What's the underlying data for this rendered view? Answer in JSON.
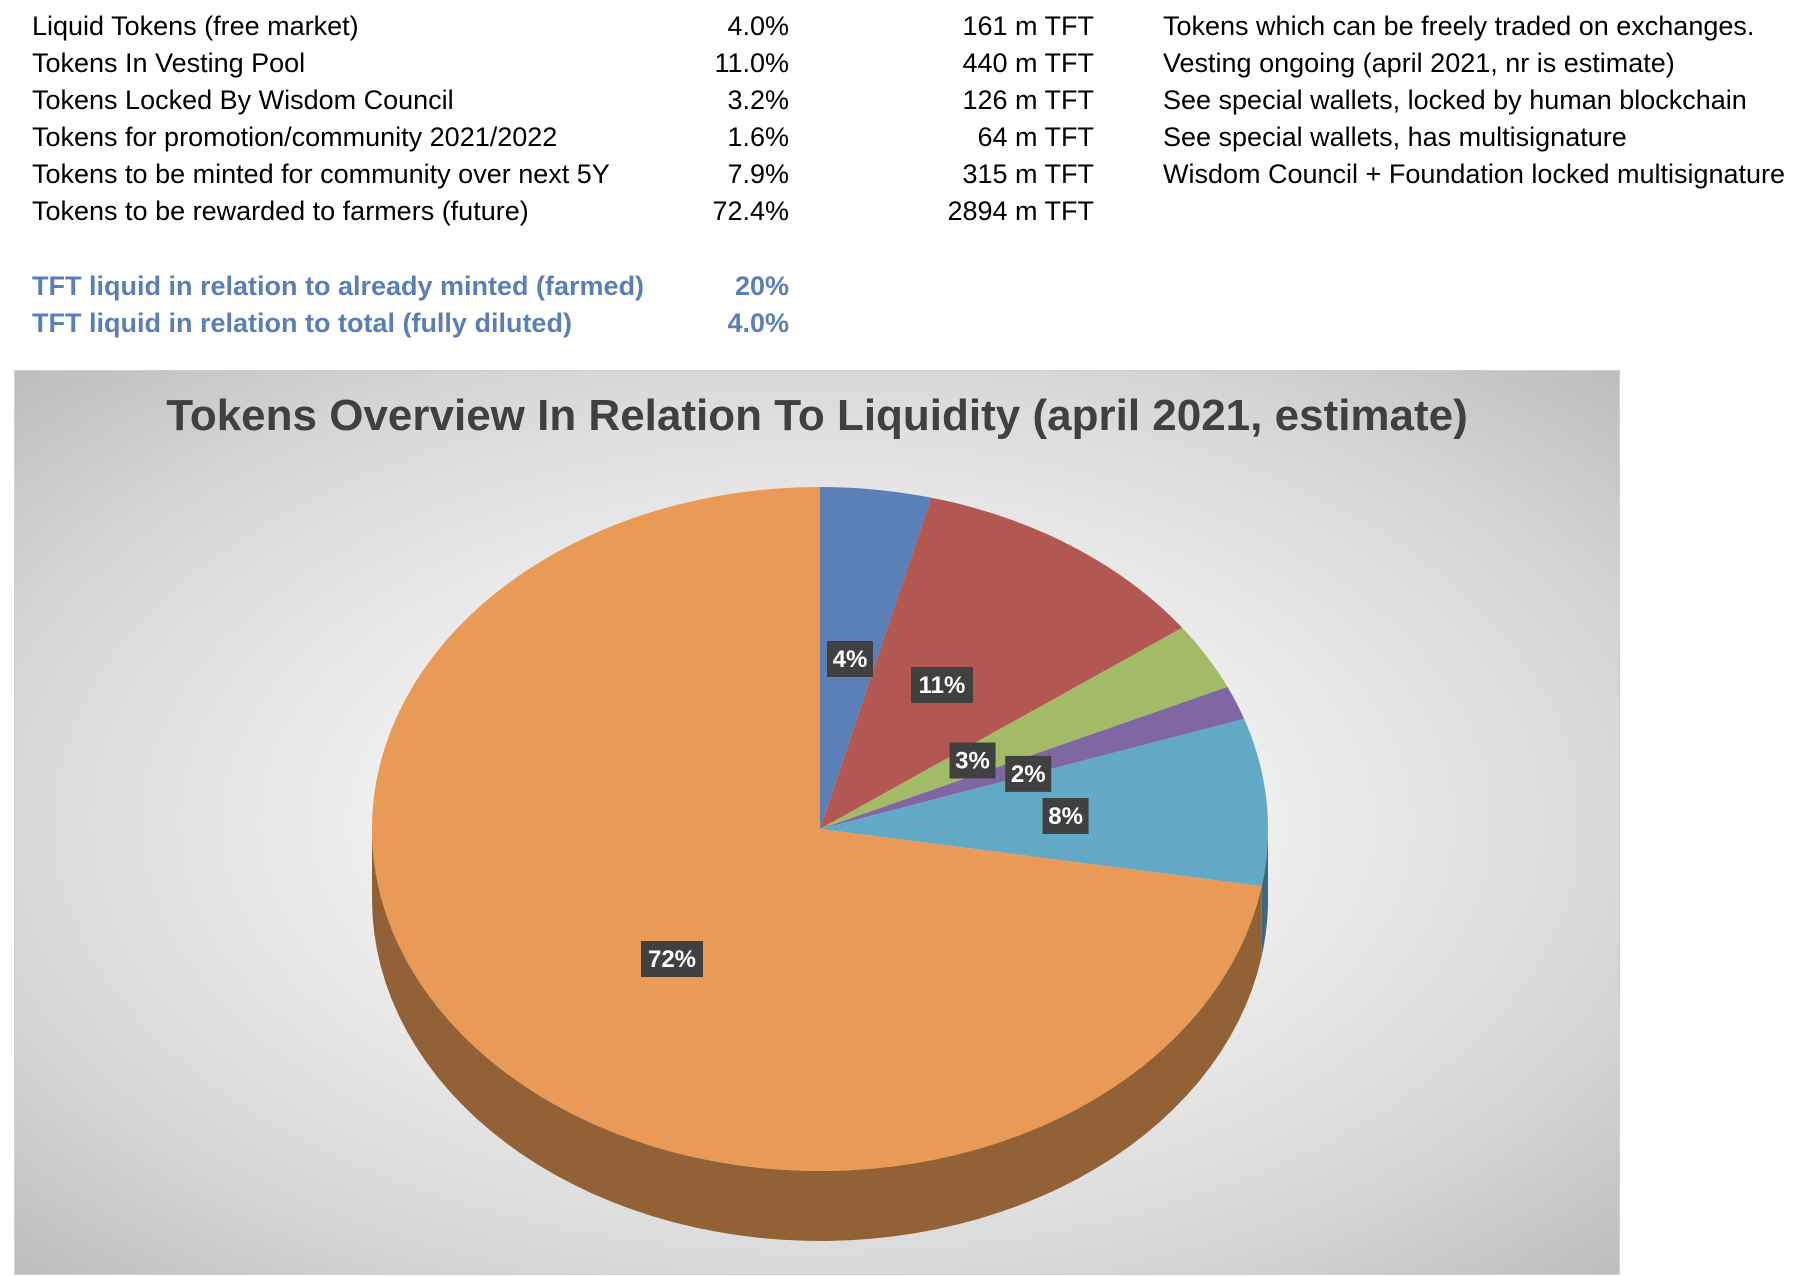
{
  "table": {
    "rows": [
      {
        "label": "Liquid Tokens (free market)",
        "pct": "4.0%",
        "amount": "161",
        "unit": "m TFT",
        "note": "Tokens which can be freely traded on exchanges."
      },
      {
        "label": "Tokens In Vesting Pool",
        "pct": "11.0%",
        "amount": "440",
        "unit": "m TFT",
        "note": "Vesting ongoing (april 2021, nr is estimate)"
      },
      {
        "label": "Tokens Locked By Wisdom Council",
        "pct": "3.2%",
        "amount": "126",
        "unit": "m TFT",
        "note": "See special wallets, locked by human blockchain"
      },
      {
        "label": "Tokens for promotion/community 2021/2022",
        "pct": "1.6%",
        "amount": "64",
        "unit": "m TFT",
        "note": "See special wallets, has multisignature"
      },
      {
        "label": "Tokens to be minted for community over next 5Y",
        "pct": "7.9%",
        "amount": "315",
        "unit": "m TFT",
        "note": "Wisdom Council + Foundation locked multisignature"
      },
      {
        "label": "Tokens to be rewarded to farmers (future)",
        "pct": "72.4%",
        "amount": "2894",
        "unit": "m TFT",
        "note": ""
      }
    ],
    "summary": [
      {
        "label": "TFT liquid in relation to already minted (farmed)",
        "value": "20%"
      },
      {
        "label": "TFT liquid in relation to total (fully diluted)",
        "value": "4.0%"
      }
    ]
  },
  "chart_data": {
    "type": "pie",
    "title": "Tokens Overview In Relation To Liquidity (april 2021, estimate)",
    "slices": [
      {
        "value": 4.0,
        "label": "4%",
        "color": "#5b80b8"
      },
      {
        "value": 11.0,
        "label": "11%",
        "color": "#b35752"
      },
      {
        "value": 3.2,
        "label": "3%",
        "color": "#a3bb66"
      },
      {
        "value": 1.6,
        "label": "2%",
        "color": "#8067a3"
      },
      {
        "value": 7.9,
        "label": "8%",
        "color": "#61a9c4"
      },
      {
        "value": 72.4,
        "label": "72%",
        "color": "#e99a56"
      }
    ],
    "style": "3d",
    "data_label_style": "dark box, white bold text",
    "background": "radial gradient white to gray"
  }
}
